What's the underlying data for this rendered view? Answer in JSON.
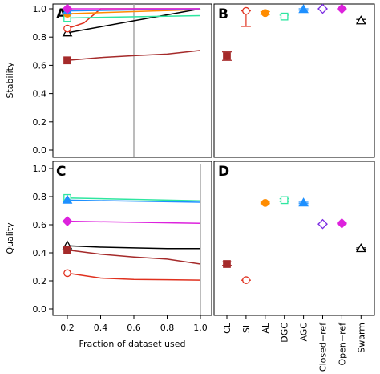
{
  "chart_data": [
    {
      "panel": "A",
      "type": "line",
      "ylabel": "Stability",
      "xlabel": "",
      "ylim": [
        0,
        1
      ],
      "xlim": [
        0.2,
        1.0
      ],
      "xticks": [
        0.2,
        0.4,
        0.6,
        0.8,
        1.0
      ],
      "yticks": [
        0.0,
        0.2,
        0.4,
        0.6,
        0.8,
        1.0
      ],
      "vline": 0.6,
      "series": [
        {
          "marker": "square",
          "color": "#a52a2a",
          "x": [
            0.2,
            0.4,
            0.6,
            0.8,
            1.0
          ],
          "values": [
            0.635,
            0.655,
            0.668,
            0.68,
            0.705
          ]
        },
        {
          "marker": "triangle-open",
          "color": "#000000",
          "x": [
            0.2,
            1.0
          ],
          "values": [
            0.83,
            1.0
          ]
        },
        {
          "marker": "circle-open",
          "color": "#e0301e",
          "x": [
            0.2,
            0.3,
            0.4,
            1.0
          ],
          "values": [
            0.86,
            0.9,
            1.0,
            1.0
          ]
        },
        {
          "marker": "square-open",
          "color": "#2ee6a0",
          "x": [
            0.2,
            1.0
          ],
          "values": [
            0.935,
            0.952
          ]
        },
        {
          "marker": "circle",
          "color": "#ff8c00",
          "x": [
            0.2,
            1.0
          ],
          "values": [
            0.965,
            0.995
          ]
        },
        {
          "marker": "triangle",
          "color": "#1e90ff",
          "x": [
            0.2,
            1.0
          ],
          "values": [
            0.985,
            1.0
          ]
        },
        {
          "marker": "diamond",
          "color": "#dd22dd",
          "x": [
            0.2,
            1.0
          ],
          "values": [
            1.0,
            1.0
          ]
        }
      ]
    },
    {
      "panel": "B",
      "type": "scatter",
      "ylim": [
        0,
        1
      ],
      "categories": [
        "CL",
        "SL",
        "AL",
        "DGC",
        "AGC",
        "Closed−ref",
        "Open−ref",
        "Swarm"
      ],
      "series": [
        {
          "category": "CL",
          "marker": "square",
          "color": "#a52a2a",
          "value": 0.665,
          "low": 0.635,
          "high": 0.695
        },
        {
          "category": "SL",
          "marker": "circle-open",
          "color": "#e0301e",
          "value": 0.985,
          "low": 0.875,
          "high": 0.985
        },
        {
          "category": "AL",
          "marker": "circle",
          "color": "#ff8c00",
          "value": 0.97,
          "low": 0.96,
          "high": 0.98
        },
        {
          "category": "DGC",
          "marker": "square-open",
          "color": "#2ee6a0",
          "value": 0.945,
          "low": 0.935,
          "high": 0.955
        },
        {
          "category": "AGC",
          "marker": "triangle",
          "color": "#1e90ff",
          "value": 0.995,
          "low": 0.99,
          "high": 1.0
        },
        {
          "category": "Closed−ref",
          "marker": "diamond-open",
          "color": "#7b2be2",
          "value": 1.0,
          "low": 1.0,
          "high": 1.0
        },
        {
          "category": "Open−ref",
          "marker": "diamond",
          "color": "#dd22dd",
          "value": 1.0,
          "low": 1.0,
          "high": 1.0
        },
        {
          "category": "Swarm",
          "marker": "triangle-open",
          "color": "#000000",
          "value": 0.915,
          "low": 0.905,
          "high": 0.925
        }
      ]
    },
    {
      "panel": "C",
      "type": "line",
      "ylabel": "Quality",
      "xlabel": "Fraction of dataset used",
      "ylim": [
        0,
        1
      ],
      "xlim": [
        0.2,
        1.0
      ],
      "xticks": [
        0.2,
        0.4,
        0.6,
        0.8,
        1.0
      ],
      "yticks": [
        0.0,
        0.2,
        0.4,
        0.6,
        0.8,
        1.0
      ],
      "vline": 1.0,
      "series": [
        {
          "marker": "square-open",
          "color": "#2ee6a0",
          "x": [
            0.2,
            1.0
          ],
          "values": [
            0.79,
            0.77
          ]
        },
        {
          "marker": "triangle",
          "color": "#1e90ff",
          "x": [
            0.2,
            1.0
          ],
          "values": [
            0.775,
            0.76
          ]
        },
        {
          "marker": "diamond",
          "color": "#dd22dd",
          "x": [
            0.2,
            1.0
          ],
          "values": [
            0.625,
            0.61
          ]
        },
        {
          "marker": "triangle-open",
          "color": "#000000",
          "x": [
            0.2,
            0.4,
            0.6,
            0.8,
            1.0
          ],
          "values": [
            0.45,
            0.44,
            0.435,
            0.43,
            0.43
          ]
        },
        {
          "marker": "square",
          "color": "#a52a2a",
          "x": [
            0.2,
            0.4,
            0.6,
            0.8,
            1.0
          ],
          "values": [
            0.42,
            0.39,
            0.37,
            0.355,
            0.32
          ]
        },
        {
          "marker": "circle-open",
          "color": "#e0301e",
          "x": [
            0.2,
            0.4,
            0.6,
            0.8,
            1.0
          ],
          "values": [
            0.255,
            0.22,
            0.21,
            0.208,
            0.205
          ]
        }
      ]
    },
    {
      "panel": "D",
      "type": "scatter",
      "ylim": [
        0,
        1
      ],
      "categories": [
        "CL",
        "SL",
        "AL",
        "DGC",
        "AGC",
        "Closed−ref",
        "Open−ref",
        "Swarm"
      ],
      "series": [
        {
          "category": "CL",
          "marker": "square",
          "color": "#a52a2a",
          "value": 0.32,
          "low": 0.31,
          "high": 0.335
        },
        {
          "category": "SL",
          "marker": "circle-open",
          "color": "#e0301e",
          "value": 0.205,
          "low": 0.205,
          "high": 0.205
        },
        {
          "category": "AL",
          "marker": "circle",
          "color": "#ff8c00",
          "value": 0.755,
          "low": 0.75,
          "high": 0.76
        },
        {
          "category": "DGC",
          "marker": "square-open",
          "color": "#2ee6a0",
          "value": 0.775,
          "low": 0.765,
          "high": 0.785
        },
        {
          "category": "AGC",
          "marker": "triangle",
          "color": "#1e90ff",
          "value": 0.755,
          "low": 0.75,
          "high": 0.76
        },
        {
          "category": "Closed−ref",
          "marker": "diamond-open",
          "color": "#7b2be2",
          "value": 0.605,
          "low": 0.605,
          "high": 0.605
        },
        {
          "category": "Open−ref",
          "marker": "diamond",
          "color": "#dd22dd",
          "value": 0.61,
          "low": 0.605,
          "high": 0.615
        },
        {
          "category": "Swarm",
          "marker": "triangle-open",
          "color": "#000000",
          "value": 0.43,
          "low": 0.425,
          "high": 0.435
        }
      ]
    }
  ]
}
